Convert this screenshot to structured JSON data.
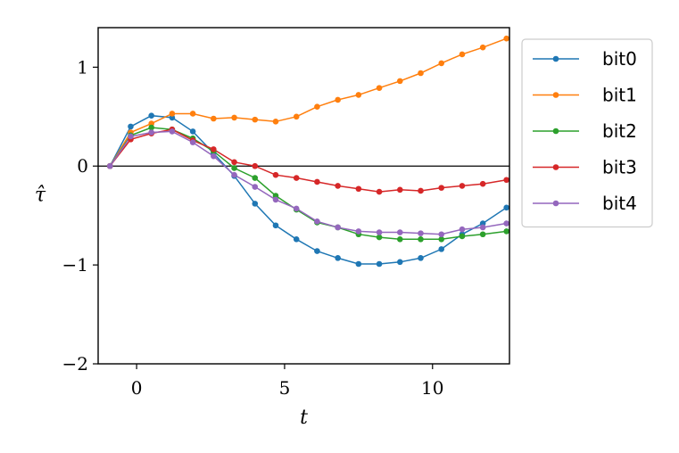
{
  "chart_data": {
    "type": "line",
    "xlabel": "t",
    "ylabel": "τ̂",
    "xlim": [
      -1.3,
      12.6
    ],
    "ylim": [
      -2,
      1.4
    ],
    "xticks": [
      0,
      5,
      10
    ],
    "yticks": [
      1,
      0,
      -1,
      -2
    ],
    "xtick_labels": [
      "0",
      "5",
      "10"
    ],
    "ytick_labels": [
      "1",
      "0",
      "−1",
      "−2"
    ],
    "grid": false,
    "zero_line": true,
    "legend_position": "outside-right-top",
    "x": [
      -0.9,
      -0.2,
      0.5,
      1.2,
      1.9,
      2.6,
      3.3,
      4.0,
      4.7,
      5.4,
      6.1,
      6.8,
      7.5,
      8.2,
      8.9,
      9.6,
      10.3,
      11.0,
      11.7,
      12.5
    ],
    "series": [
      {
        "name": "bit0",
        "color": "#1f77b4",
        "values": [
          0,
          0.4,
          0.51,
          0.49,
          0.35,
          0.13,
          -0.1,
          -0.38,
          -0.6,
          -0.74,
          -0.86,
          -0.93,
          -0.99,
          -0.99,
          -0.97,
          -0.93,
          -0.84,
          -0.69,
          -0.58,
          -0.42
        ]
      },
      {
        "name": "bit1",
        "color": "#ff7f0e",
        "values": [
          0,
          0.34,
          0.43,
          0.53,
          0.53,
          0.48,
          0.49,
          0.47,
          0.45,
          0.5,
          0.6,
          0.67,
          0.72,
          0.79,
          0.86,
          0.94,
          1.04,
          1.13,
          1.2,
          1.29
        ]
      },
      {
        "name": "bit2",
        "color": "#2ca02c",
        "values": [
          0,
          0.31,
          0.39,
          0.37,
          0.28,
          0.15,
          -0.02,
          -0.12,
          -0.3,
          -0.44,
          -0.57,
          -0.62,
          -0.69,
          -0.72,
          -0.74,
          -0.74,
          -0.74,
          -0.71,
          -0.69,
          -0.66
        ]
      },
      {
        "name": "bit3",
        "color": "#d62728",
        "values": [
          0,
          0.27,
          0.33,
          0.37,
          0.26,
          0.17,
          0.04,
          0.0,
          -0.09,
          -0.12,
          -0.16,
          -0.2,
          -0.23,
          -0.26,
          -0.24,
          -0.25,
          -0.22,
          -0.2,
          -0.18,
          -0.14
        ]
      },
      {
        "name": "bit4",
        "color": "#9467bd",
        "values": [
          0,
          0.3,
          0.34,
          0.35,
          0.24,
          0.1,
          -0.09,
          -0.21,
          -0.34,
          -0.43,
          -0.56,
          -0.62,
          -0.66,
          -0.67,
          -0.67,
          -0.68,
          -0.69,
          -0.64,
          -0.62,
          -0.58
        ]
      }
    ]
  }
}
